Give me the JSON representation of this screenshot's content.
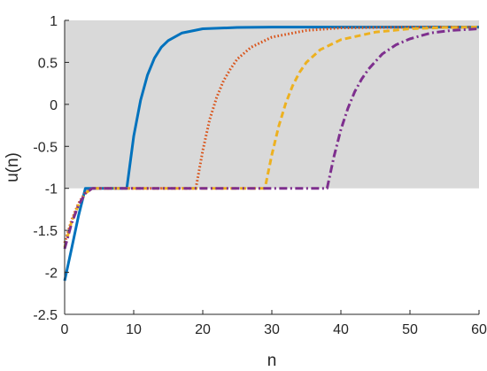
{
  "chart_data": {
    "type": "line",
    "xlabel": "n",
    "ylabel": "u(n)",
    "xlim": [
      0,
      60
    ],
    "ylim": [
      -2.5,
      1
    ],
    "xticks": [
      0,
      10,
      20,
      30,
      40,
      50,
      60
    ],
    "xtick_labels": [
      "0",
      "10",
      "20",
      "30",
      "40",
      "50",
      "60"
    ],
    "yticks": [
      -2.5,
      -2,
      -1.5,
      -1,
      -0.5,
      0,
      0.5,
      1
    ],
    "ytick_labels": [
      "-2.5",
      "-2",
      "-1.5",
      "-1",
      "-0.5",
      "0",
      "0.5",
      "1"
    ],
    "grid": false,
    "shaded_band": {
      "y_range": [
        -1,
        1
      ],
      "color": "#d9d9d9"
    },
    "series": [
      {
        "style": "solid",
        "color": "#0072BD",
        "x": [
          0,
          1,
          2,
          3,
          4,
          5,
          6,
          7,
          8,
          9,
          10,
          11,
          12,
          13,
          14,
          15,
          17,
          20,
          25,
          30,
          40,
          50,
          60
        ],
        "y": [
          -2.1,
          -1.72,
          -1.33,
          -1.0,
          -1.0,
          -1.0,
          -1.0,
          -1.0,
          -1.0,
          -1.0,
          -0.38,
          0.05,
          0.35,
          0.55,
          0.68,
          0.76,
          0.85,
          0.9,
          0.915,
          0.92,
          0.92,
          0.92,
          0.92
        ]
      },
      {
        "style": "dotted",
        "color": "#D95319",
        "x": [
          0,
          1,
          2,
          3,
          4,
          6,
          10,
          15,
          19,
          20,
          21,
          22,
          23,
          24,
          25,
          27,
          30,
          35,
          40,
          50,
          60
        ],
        "y": [
          -1.65,
          -1.38,
          -1.18,
          -1.05,
          -1.0,
          -1.0,
          -1.0,
          -1.0,
          -1.0,
          -0.55,
          -0.18,
          0.08,
          0.28,
          0.42,
          0.54,
          0.68,
          0.8,
          0.88,
          0.91,
          0.92,
          0.92
        ]
      },
      {
        "style": "dashed",
        "color": "#EDB120",
        "x": [
          0,
          1,
          2,
          3,
          4,
          6,
          10,
          20,
          29,
          30,
          31,
          32,
          33,
          34,
          35,
          37,
          40,
          45,
          50,
          55,
          60
        ],
        "y": [
          -1.7,
          -1.4,
          -1.2,
          -1.06,
          -1.0,
          -1.0,
          -1.0,
          -1.0,
          -1.0,
          -0.6,
          -0.26,
          0.01,
          0.22,
          0.38,
          0.5,
          0.65,
          0.77,
          0.86,
          0.9,
          0.915,
          0.92
        ]
      },
      {
        "style": "dashdot",
        "color": "#7E2F8E",
        "x": [
          0,
          1,
          2,
          3,
          4,
          6,
          10,
          20,
          30,
          38,
          39,
          40,
          41,
          42,
          43,
          44,
          46,
          48,
          50,
          53,
          56,
          60
        ],
        "y": [
          -1.72,
          -1.42,
          -1.2,
          -1.06,
          -1.0,
          -1.0,
          -1.0,
          -1.0,
          -1.0,
          -1.0,
          -0.62,
          -0.3,
          -0.05,
          0.15,
          0.3,
          0.42,
          0.6,
          0.71,
          0.78,
          0.85,
          0.88,
          0.9
        ]
      }
    ]
  }
}
